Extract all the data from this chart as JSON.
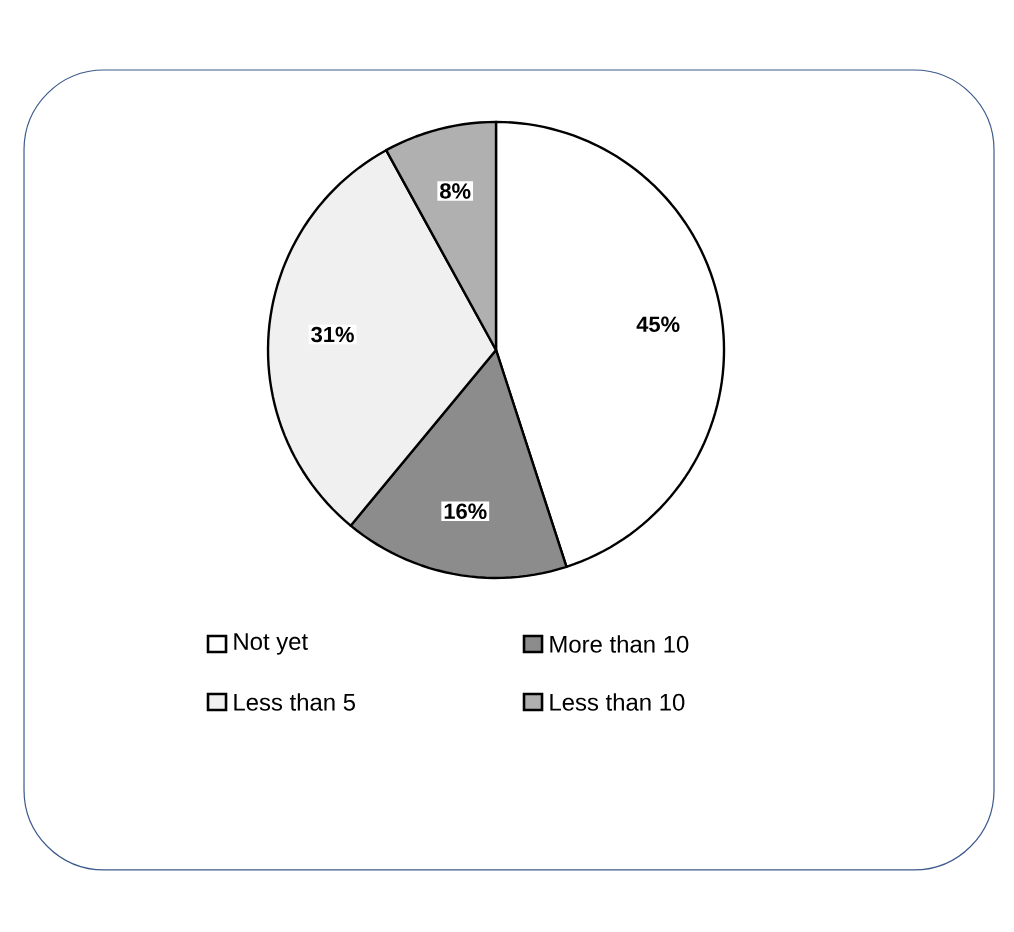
{
  "chart_data": {
    "type": "pie",
    "categories": [
      "Not yet",
      "More than 10",
      "Less than 5",
      "Less than 10"
    ],
    "values": [
      45,
      16,
      31,
      8
    ],
    "colors": [
      "#ffffff",
      "#8c8c8c",
      "#f0f0f0",
      "#b0b0b0"
    ],
    "value_labels": [
      "45%",
      "16%",
      "31%",
      "8%"
    ],
    "legend": "bottom"
  }
}
